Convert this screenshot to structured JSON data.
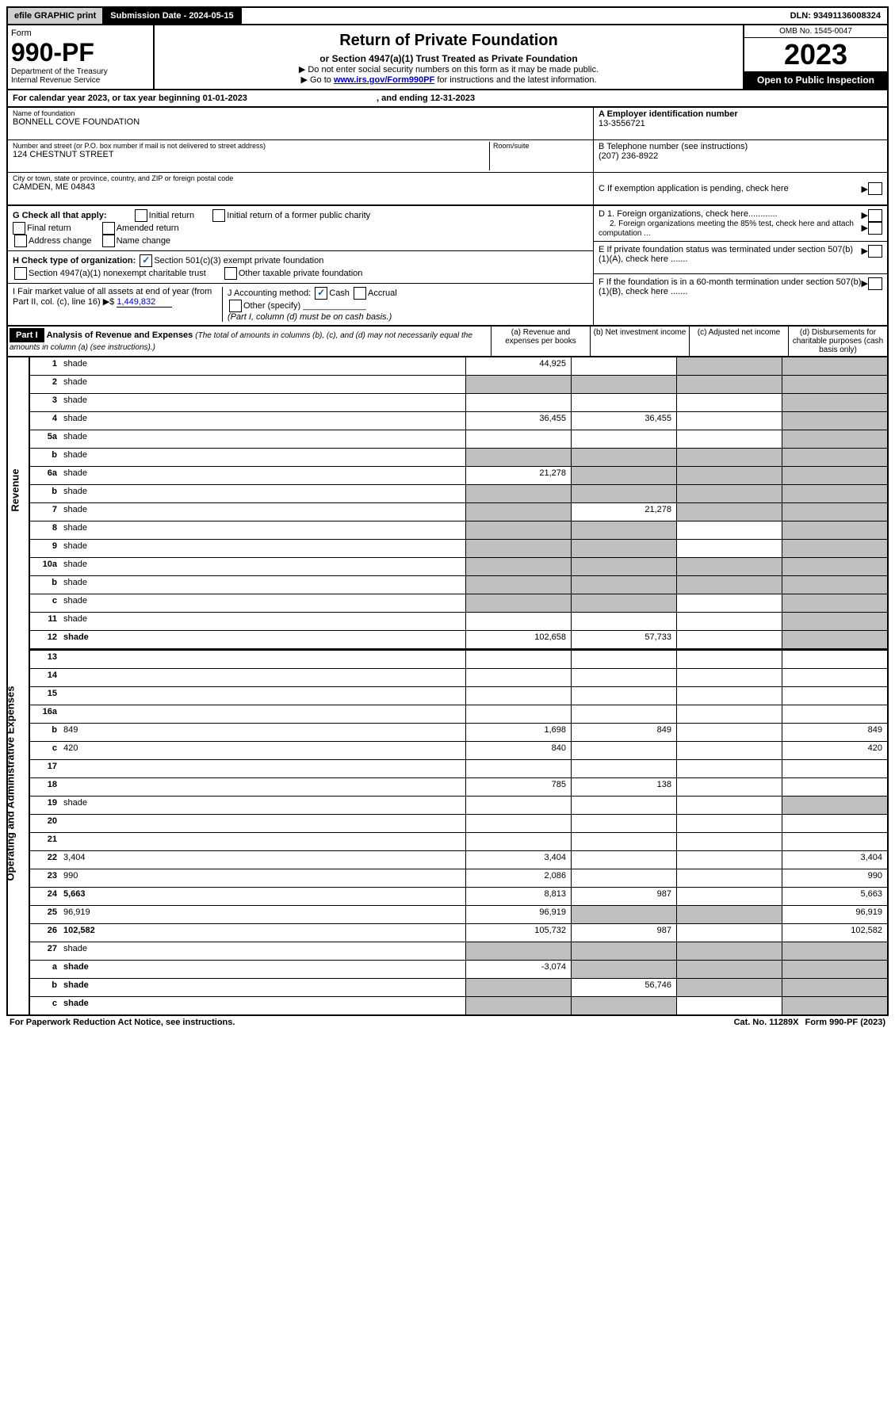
{
  "topbar": {
    "efile": "efile GRAPHIC print",
    "subdate_label": "Submission Date - 2024-05-15",
    "dln": "DLN: 93491136008324"
  },
  "header": {
    "form_word": "Form",
    "form_num": "990-PF",
    "dept": "Department of the Treasury",
    "irs": "Internal Revenue Service",
    "title": "Return of Private Foundation",
    "subtitle": "or Section 4947(a)(1) Trust Treated as Private Foundation",
    "instr1": "▶ Do not enter social security numbers on this form as it may be made public.",
    "instr2_pre": "▶ Go to ",
    "instr2_link": "www.irs.gov/Form990PF",
    "instr2_post": " for instructions and the latest information.",
    "omb": "OMB No. 1545-0047",
    "year": "2023",
    "otp": "Open to Public Inspection"
  },
  "calyear": {
    "text_pre": "For calendar year 2023, or tax year beginning ",
    "begin": "01-01-2023",
    "mid": " , and ending ",
    "end": "12-31-2023"
  },
  "foundation": {
    "name_label": "Name of foundation",
    "name": "BONNELL COVE FOUNDATION",
    "addr_label": "Number and street (or P.O. box number if mail is not delivered to street address)",
    "addr": "124 CHESTNUT STREET",
    "room_label": "Room/suite",
    "city_label": "City or town, state or province, country, and ZIP or foreign postal code",
    "city": "CAMDEN, ME  04843",
    "a_label": "A Employer identification number",
    "a_val": "13-3556721",
    "b_label": "B Telephone number (see instructions)",
    "b_val": "(207) 236-8922",
    "c_label": "C If exemption application is pending, check here"
  },
  "checks": {
    "g_label": "G Check all that apply:",
    "g_opts": [
      "Initial return",
      "Initial return of a former public charity",
      "Final return",
      "Amended return",
      "Address change",
      "Name change"
    ],
    "h_label": "H Check type of organization:",
    "h_opt1": "Section 501(c)(3) exempt private foundation",
    "h_opt2": "Section 4947(a)(1) nonexempt charitable trust",
    "h_opt3": "Other taxable private foundation",
    "i_label": "I Fair market value of all assets at end of year (from Part II, col. (c), line 16) ▶$",
    "i_val": "1,449,832",
    "j_label": "J Accounting method:",
    "j_cash": "Cash",
    "j_accrual": "Accrual",
    "j_other": "Other (specify)",
    "j_note": "(Part I, column (d) must be on cash basis.)",
    "d1": "D 1. Foreign organizations, check here............",
    "d2": "2. Foreign organizations meeting the 85% test, check here and attach computation ...",
    "e_label": "E  If private foundation status was terminated under section 507(b)(1)(A), check here .......",
    "f_label": "F  If the foundation is in a 60-month termination under section 507(b)(1)(B), check here ......."
  },
  "part1": {
    "label": "Part I",
    "title": "Analysis of Revenue and Expenses",
    "title_note": "(The total of amounts in columns (b), (c), and (d) may not necessarily equal the amounts in column (a) (see instructions).)",
    "col_a": "(a)    Revenue and expenses per books",
    "col_b": "(b)    Net investment income",
    "col_c": "(c)    Adjusted net income",
    "col_d": "(d)    Disbursements for charitable purposes (cash basis only)"
  },
  "side_labels": {
    "revenue": "Revenue",
    "opex": "Operating and Administrative Expenses"
  },
  "rows": [
    {
      "n": "1",
      "d": "shade",
      "a": "44,925",
      "b": "",
      "c": "shade"
    },
    {
      "n": "2",
      "d": "shade",
      "a": "shade",
      "b": "shade",
      "c": "shade"
    },
    {
      "n": "3",
      "d": "shade",
      "a": "",
      "b": "",
      "c": ""
    },
    {
      "n": "4",
      "d": "shade",
      "a": "36,455",
      "b": "36,455",
      "c": ""
    },
    {
      "n": "5a",
      "d": "shade",
      "a": "",
      "b": "",
      "c": ""
    },
    {
      "n": "b",
      "d": "shade",
      "a": "shade",
      "b": "shade",
      "c": "shade"
    },
    {
      "n": "6a",
      "d": "shade",
      "a": "21,278",
      "b": "shade",
      "c": "shade"
    },
    {
      "n": "b",
      "d": "shade",
      "a": "shade",
      "b": "shade",
      "c": "shade"
    },
    {
      "n": "7",
      "d": "shade",
      "a": "shade",
      "b": "21,278",
      "c": "shade"
    },
    {
      "n": "8",
      "d": "shade",
      "a": "shade",
      "b": "shade",
      "c": ""
    },
    {
      "n": "9",
      "d": "shade",
      "a": "shade",
      "b": "shade",
      "c": ""
    },
    {
      "n": "10a",
      "d": "shade",
      "a": "shade",
      "b": "shade",
      "c": "shade"
    },
    {
      "n": "b",
      "d": "shade",
      "a": "shade",
      "b": "shade",
      "c": "shade"
    },
    {
      "n": "c",
      "d": "shade",
      "a": "shade",
      "b": "shade",
      "c": ""
    },
    {
      "n": "11",
      "d": "shade",
      "a": "",
      "b": "",
      "c": ""
    },
    {
      "n": "12",
      "d": "shade",
      "bold": true,
      "a": "102,658",
      "b": "57,733",
      "c": ""
    },
    {
      "n": "13",
      "d": "",
      "a": "",
      "b": "",
      "c": ""
    },
    {
      "n": "14",
      "d": "",
      "a": "",
      "b": "",
      "c": ""
    },
    {
      "n": "15",
      "d": "",
      "a": "",
      "b": "",
      "c": ""
    },
    {
      "n": "16a",
      "d": "",
      "a": "",
      "b": "",
      "c": ""
    },
    {
      "n": "b",
      "d": "849",
      "a": "1,698",
      "b": "849",
      "c": ""
    },
    {
      "n": "c",
      "d": "420",
      "a": "840",
      "b": "",
      "c": ""
    },
    {
      "n": "17",
      "d": "",
      "a": "",
      "b": "",
      "c": ""
    },
    {
      "n": "18",
      "d": "",
      "a": "785",
      "b": "138",
      "c": ""
    },
    {
      "n": "19",
      "d": "shade",
      "a": "",
      "b": "",
      "c": ""
    },
    {
      "n": "20",
      "d": "",
      "a": "",
      "b": "",
      "c": ""
    },
    {
      "n": "21",
      "d": "",
      "a": "",
      "b": "",
      "c": ""
    },
    {
      "n": "22",
      "d": "3,404",
      "a": "3,404",
      "b": "",
      "c": ""
    },
    {
      "n": "23",
      "d": "990",
      "a": "2,086",
      "b": "",
      "c": ""
    },
    {
      "n": "24",
      "d": "5,663",
      "bold": true,
      "a": "8,813",
      "b": "987",
      "c": ""
    },
    {
      "n": "25",
      "d": "96,919",
      "a": "96,919",
      "b": "shade",
      "c": "shade"
    },
    {
      "n": "26",
      "d": "102,582",
      "bold": true,
      "a": "105,732",
      "b": "987",
      "c": ""
    },
    {
      "n": "27",
      "d": "shade",
      "a": "shade",
      "b": "shade",
      "c": "shade"
    },
    {
      "n": "a",
      "d": "shade",
      "bold": true,
      "a": "-3,074",
      "b": "shade",
      "c": "shade"
    },
    {
      "n": "b",
      "d": "shade",
      "bold": true,
      "a": "shade",
      "b": "56,746",
      "c": "shade"
    },
    {
      "n": "c",
      "d": "shade",
      "bold": true,
      "a": "shade",
      "b": "shade",
      "c": ""
    }
  ],
  "footer": {
    "pra": "For Paperwork Reduction Act Notice, see instructions.",
    "cat": "Cat. No. 11289X",
    "form": "Form 990-PF (2023)"
  }
}
